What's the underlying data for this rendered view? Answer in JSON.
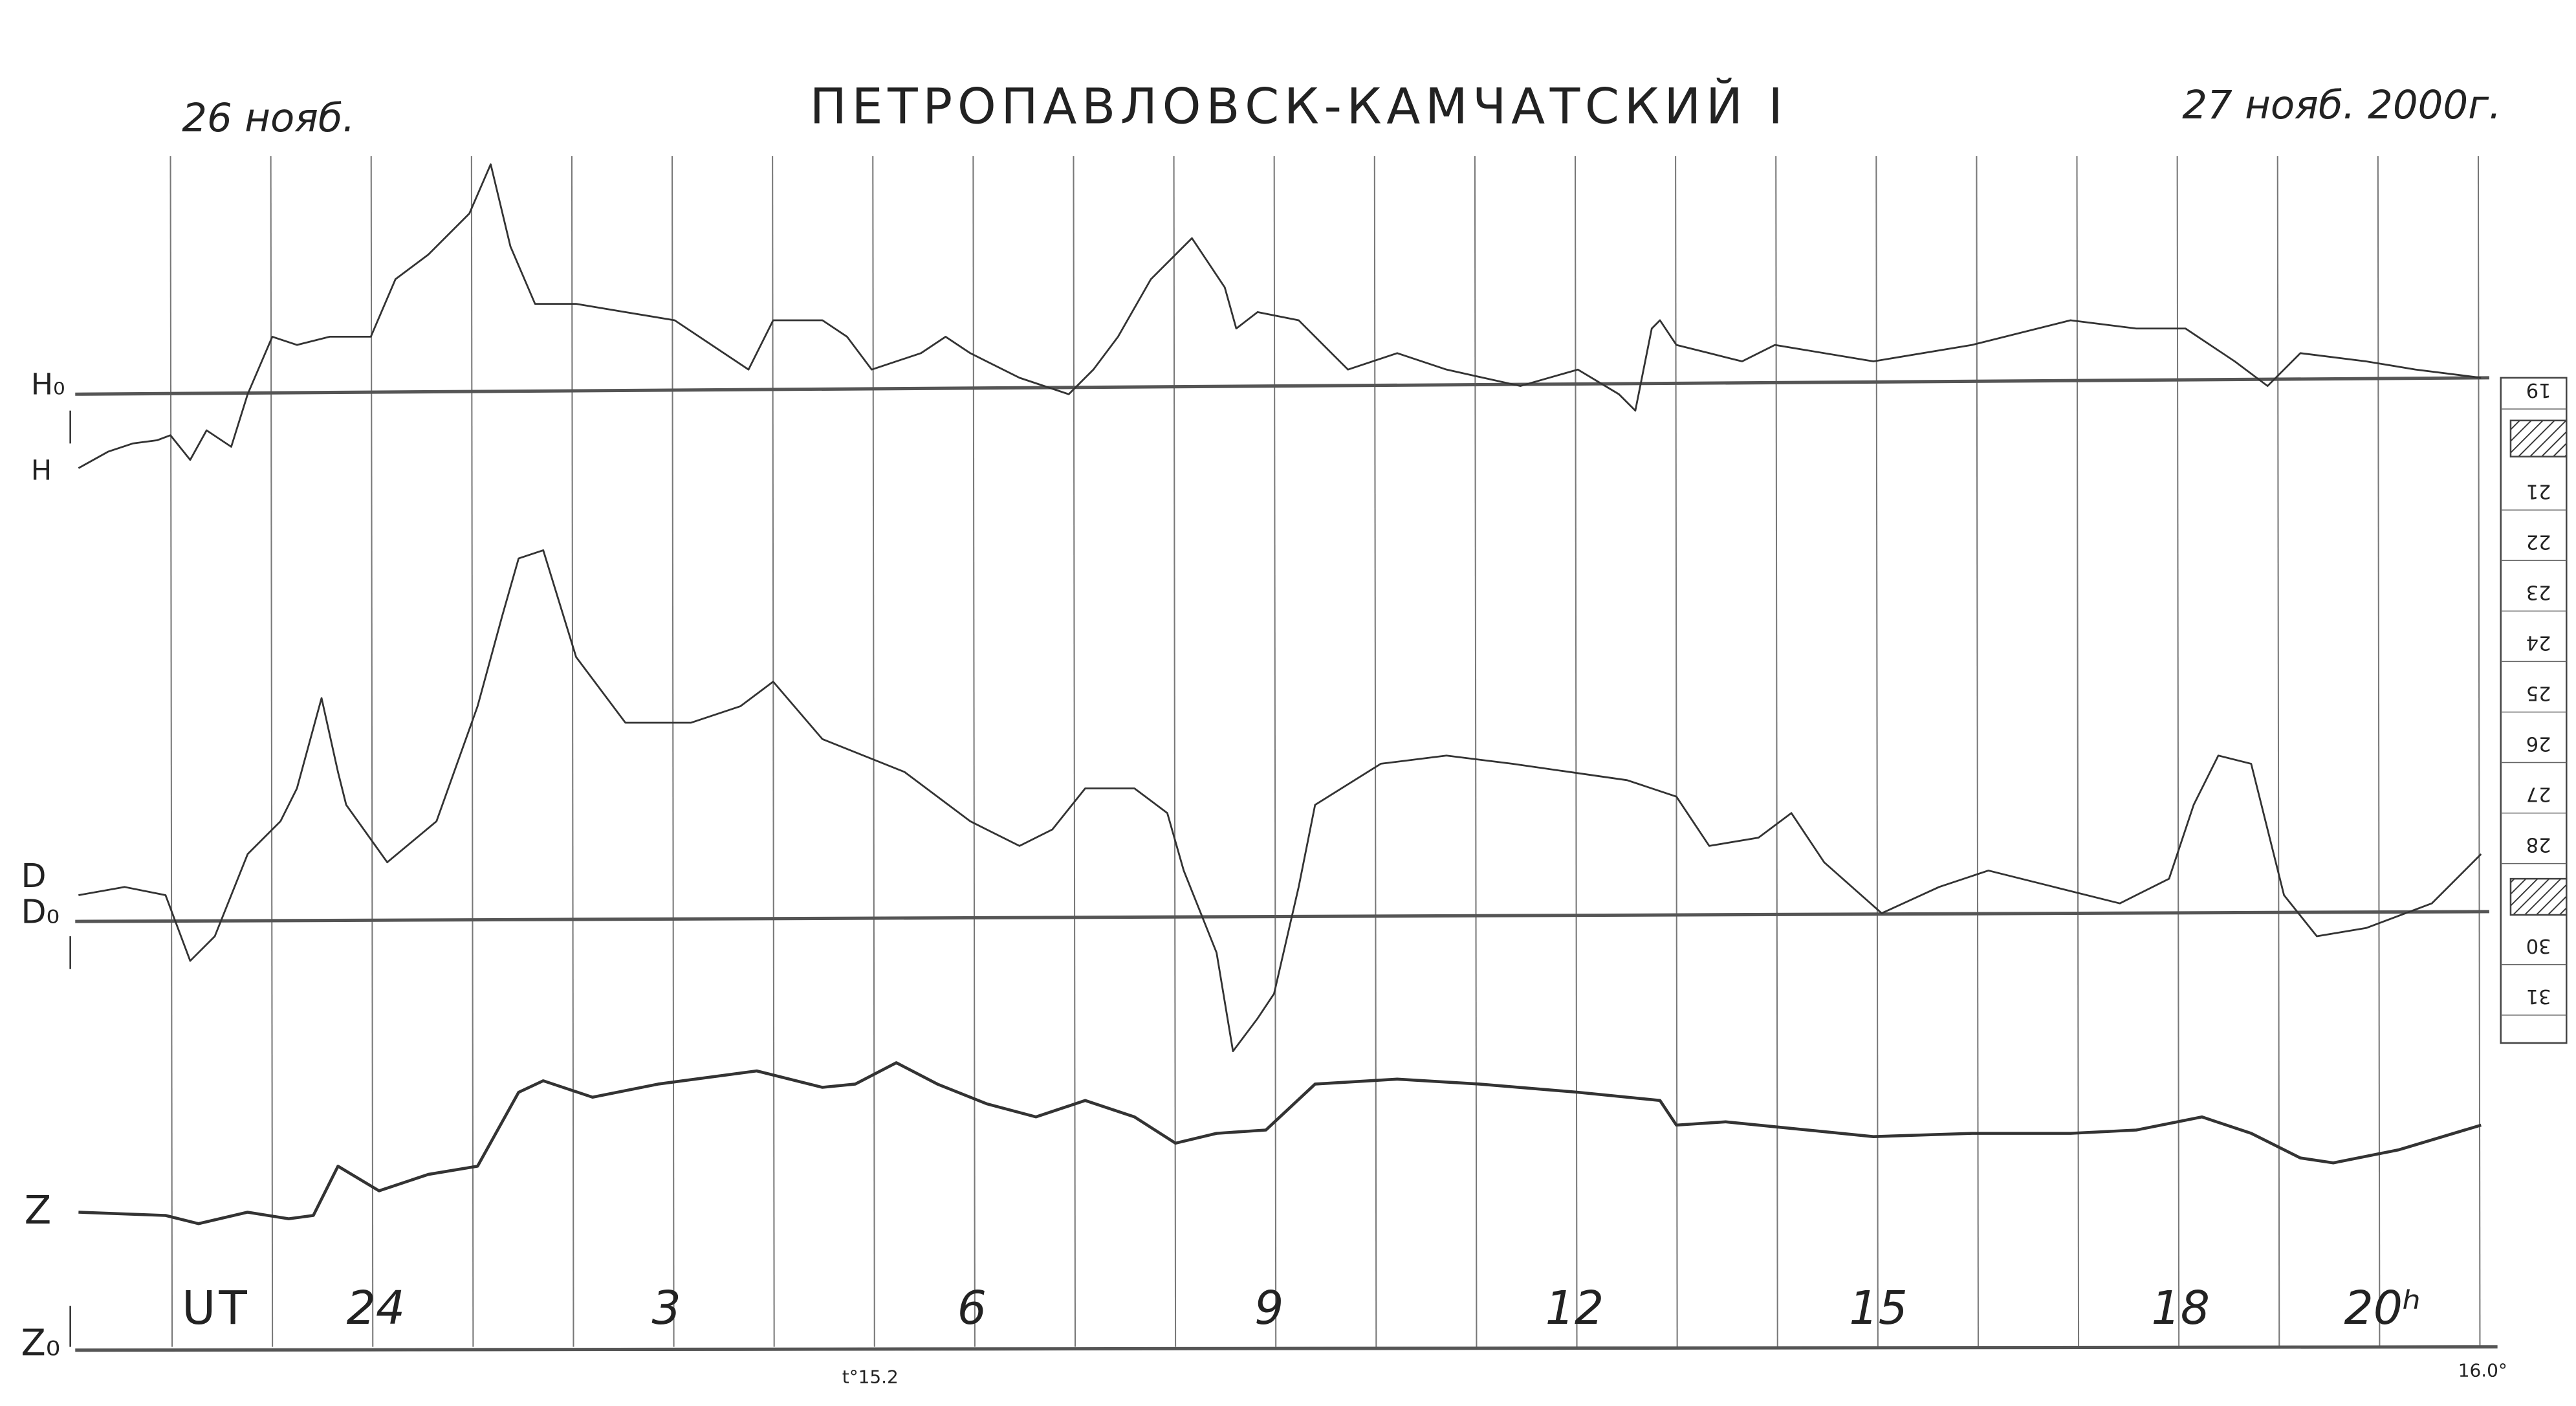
{
  "header": {
    "left_date": "26 нояб.",
    "title": "ПЕТРОПАВЛОВСК-КАМЧАТСКИЙ I",
    "right_date": "27 нояб. 2000г."
  },
  "traces": {
    "h0": "H₀",
    "h": "H",
    "d": "D",
    "d0": "D₀",
    "z": "Z",
    "z0": "Z₀"
  },
  "time_axis": {
    "label": "UT",
    "hours": [
      "24",
      "3",
      "6",
      "9",
      "12",
      "15",
      "18",
      "20ʰ"
    ]
  },
  "temperatures": {
    "start": "t°15.2",
    "end": "16.0°"
  },
  "scale": [
    "19",
    "21",
    "22",
    "23",
    "24",
    "25",
    "26",
    "27",
    "28",
    "30",
    "31"
  ]
}
